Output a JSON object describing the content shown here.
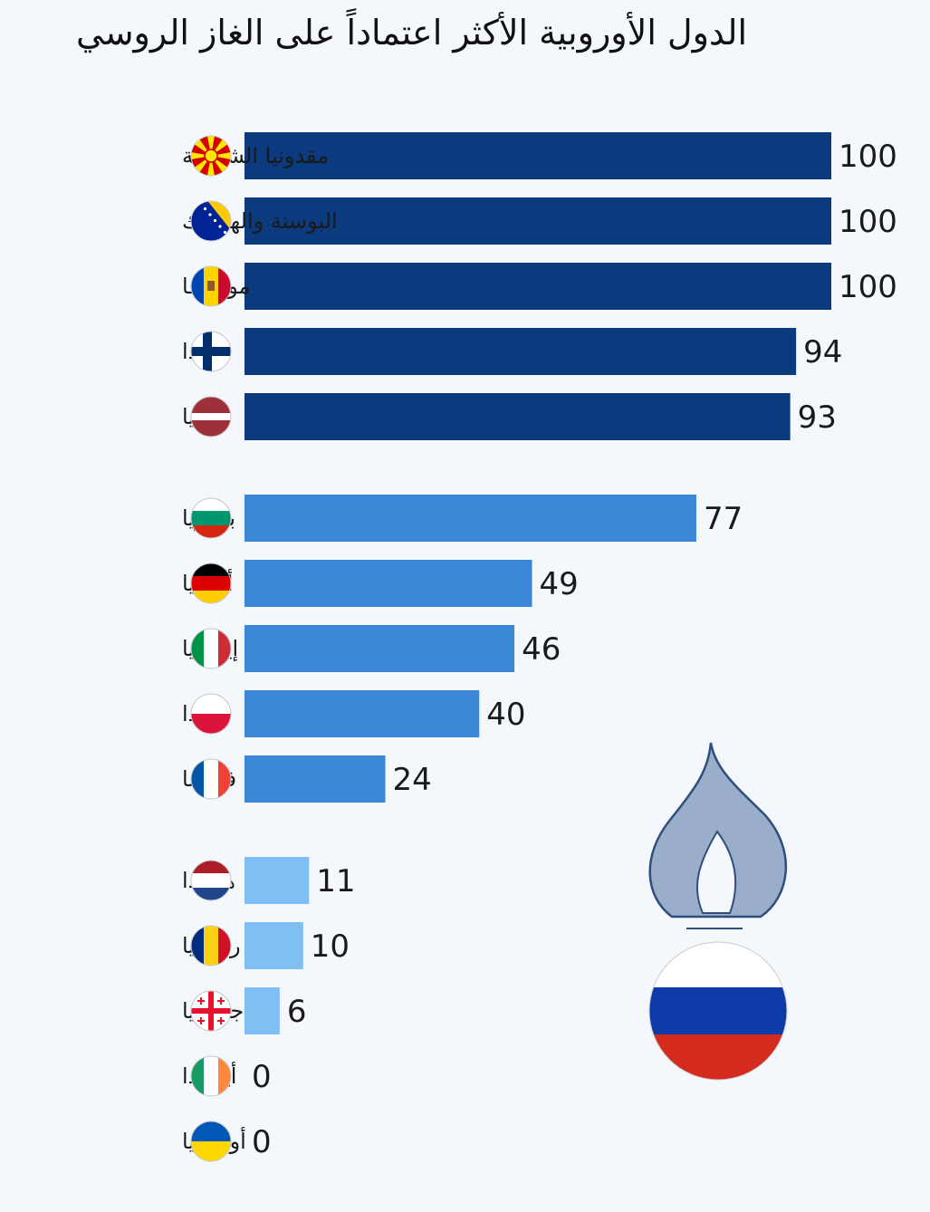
{
  "chart_data": {
    "type": "bar",
    "orientation": "horizontal",
    "title": "الدول الأوروبية الأكثر اعتماداً على الغاز الروسي",
    "xlabel": "",
    "ylabel": "",
    "xlim": [
      0,
      100
    ],
    "grid": false,
    "legend": "none",
    "groups": [
      {
        "color": "#0b3a7e",
        "items": [
          {
            "category": "مقدونيا الشمالية",
            "value": 100,
            "flag": "north-macedonia"
          },
          {
            "category": "البوسنة والهرسك",
            "value": 100,
            "flag": "bosnia-herzegovina"
          },
          {
            "category": "مولدوفا",
            "value": 100,
            "flag": "moldova"
          },
          {
            "category": "فنلندا",
            "value": 94,
            "flag": "finland"
          },
          {
            "category": "لاتفيا",
            "value": 93,
            "flag": "latvia"
          }
        ]
      },
      {
        "color": "#3a87d6",
        "items": [
          {
            "category": "بلغاريا",
            "value": 77,
            "flag": "bulgaria"
          },
          {
            "category": "ألمانيا",
            "value": 49,
            "flag": "germany"
          },
          {
            "category": "إيطاليا",
            "value": 46,
            "flag": "italy"
          },
          {
            "category": "بولندا",
            "value": 40,
            "flag": "poland"
          },
          {
            "category": "فرنسا",
            "value": 24,
            "flag": "france"
          }
        ]
      },
      {
        "color": "#80bff4",
        "items": [
          {
            "category": "هولندا",
            "value": 11,
            "flag": "netherlands"
          },
          {
            "category": "رومانيا",
            "value": 10,
            "flag": "romania"
          },
          {
            "category": "جورجيا",
            "value": 6,
            "flag": "georgia"
          },
          {
            "category": "أيرلندا",
            "value": 0,
            "flag": "ireland"
          },
          {
            "category": "أوكرانيا",
            "value": 0,
            "flag": "ukraine"
          }
        ]
      }
    ],
    "illustration": {
      "icon": "gas-flame-icon",
      "flag": "russia"
    }
  }
}
